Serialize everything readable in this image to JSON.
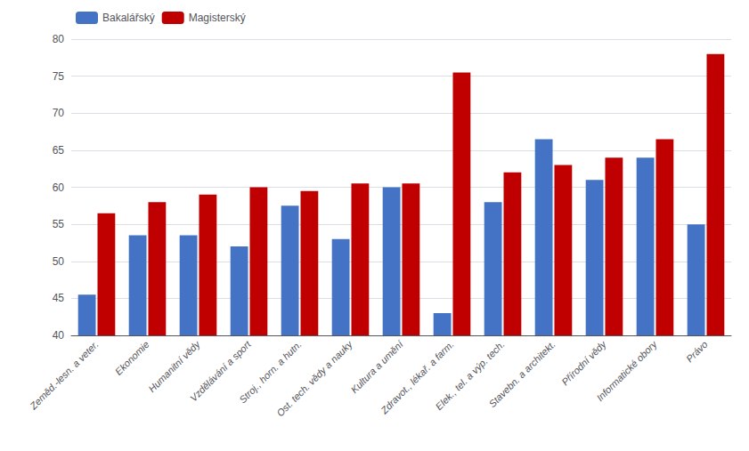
{
  "chart_data": {
    "type": "bar",
    "categories": [
      "Zeměd.-lesn. a veter.",
      "Ekonomie",
      "Humanitní vědy",
      "Vzdělávání a sport",
      "Stroj., horn. a hutn.",
      "Ost. tech. vědy a nauky",
      "Kultura a umění",
      "Zdravot., lékař. a farm.",
      "Elek., tel. a výp. tech.",
      "Stavebn. a architekt.",
      "Přírodní vědy",
      "Informatické obory",
      "Právo"
    ],
    "series": [
      {
        "name": "Bakalářský",
        "color": "#4472c4",
        "values": [
          45.5,
          53.5,
          53.5,
          52.0,
          57.5,
          53.0,
          60.0,
          43.0,
          58.0,
          66.5,
          61.0,
          64.0,
          55.0
        ]
      },
      {
        "name": "Magisterský",
        "color": "#c00000",
        "values": [
          56.5,
          58.0,
          59.0,
          60.0,
          59.5,
          60.5,
          60.5,
          75.5,
          62.0,
          63.0,
          64.0,
          66.5,
          78.0
        ]
      }
    ],
    "ylim": [
      40,
      80
    ],
    "yticks": [
      40,
      45,
      50,
      55,
      60,
      65,
      70,
      75,
      80
    ],
    "grid": true,
    "legend": "upper left"
  }
}
